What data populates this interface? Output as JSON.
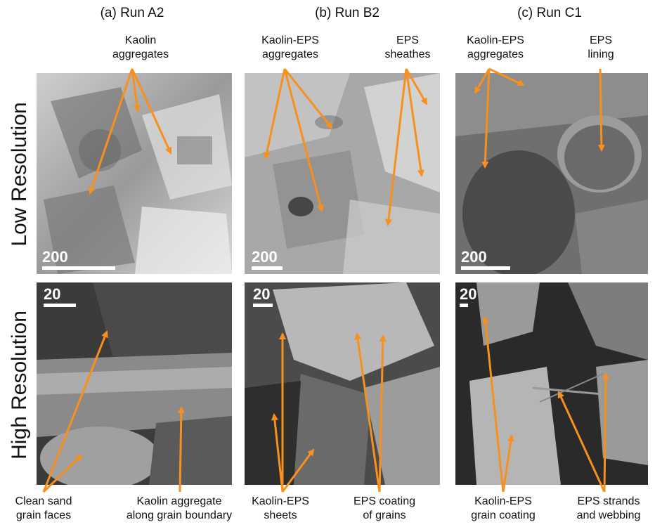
{
  "columns": [
    {
      "title": "(a) Run A2"
    },
    {
      "title": "(b) Run B2"
    },
    {
      "title": "(c) Run C1"
    }
  ],
  "rows": [
    {
      "label": "Low Resolution"
    },
    {
      "label": "High Resolution"
    }
  ],
  "top_annotations": {
    "a_kaolin": "Kaolin\naggregates",
    "b_kaolin_eps": "Kaolin-EPS\naggregates",
    "b_eps_sheathes": "EPS\nsheathes",
    "c_kaolin_eps": "Kaolin-EPS\naggregates",
    "c_eps_lining": "EPS\nlining"
  },
  "bottom_annotations": {
    "a_clean_sand": "Clean sand\ngrain faces",
    "a_kaolin_boundary": "Kaolin aggregate\nalong grain boundary",
    "b_sheets": "Kaolin-EPS\nsheets",
    "b_coating": "EPS coating\nof grains",
    "c_grain_coating": "Kaolin-EPS\ngrain coating",
    "c_strands": "EPS strands\nand webbing"
  },
  "scale_bars": {
    "a_low": "200",
    "b_low": "200",
    "c_low": "200",
    "a_high": "20",
    "b_high": "20",
    "c_high": "20"
  },
  "colors": {
    "arrow": "#f7901e",
    "sem_light": "#b8b8b8",
    "sem_dark": "#3a3a3a"
  }
}
